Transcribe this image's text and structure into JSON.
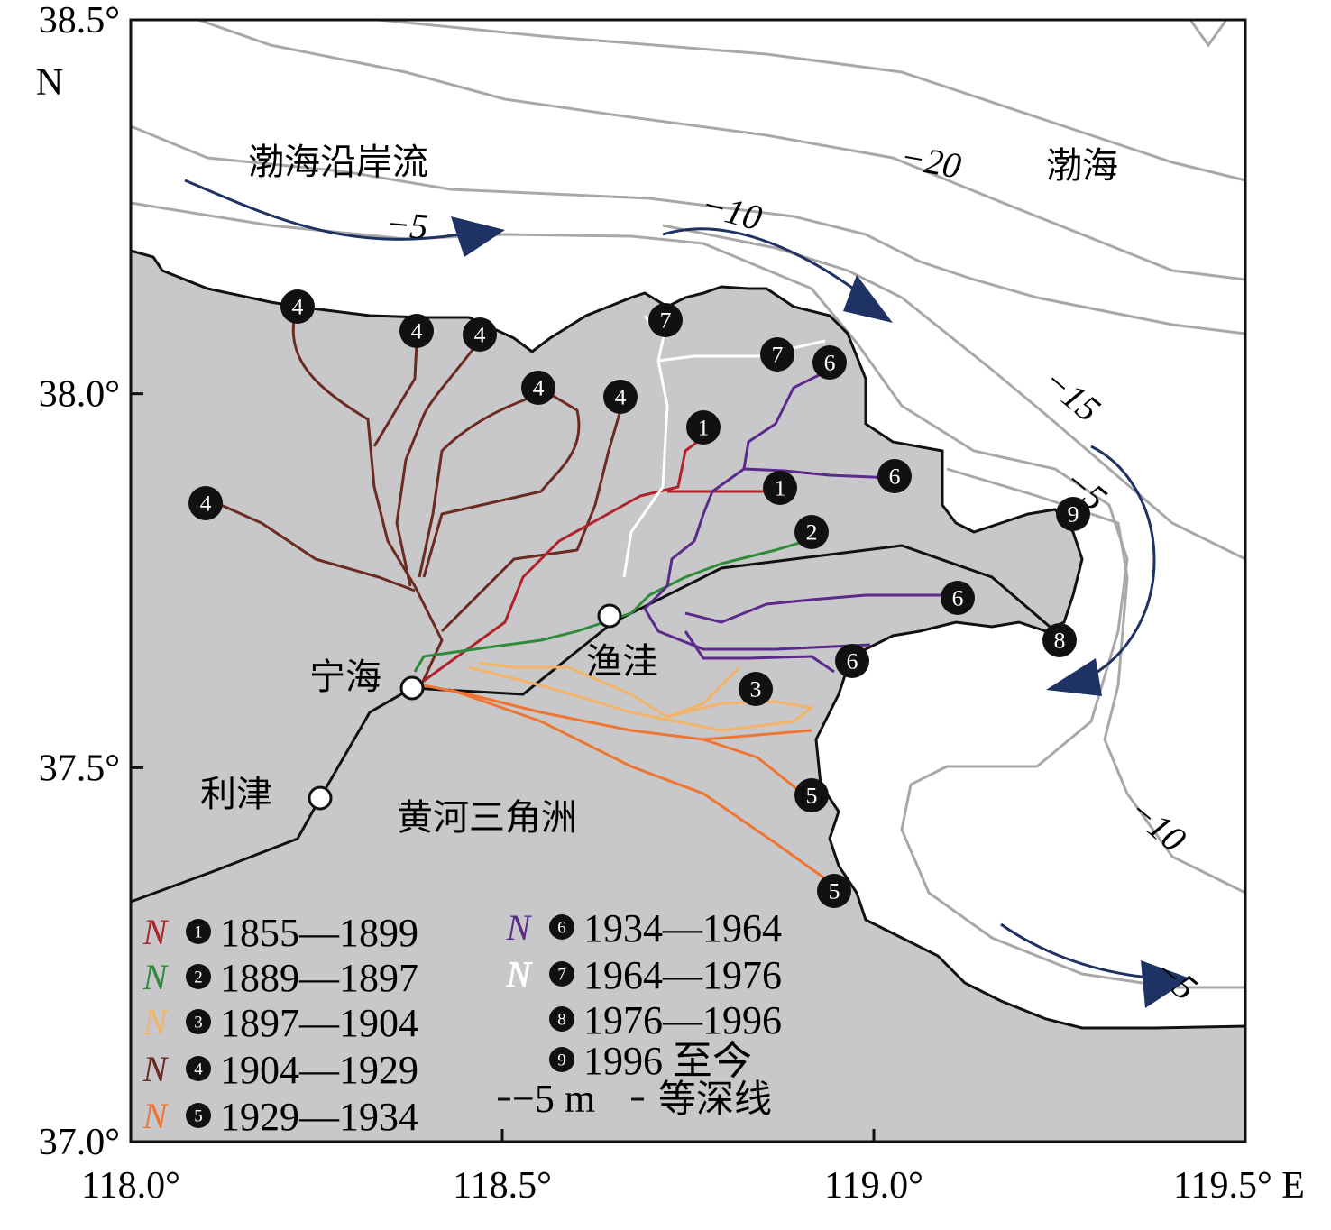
{
  "axes": {
    "xlim": [
      118,
      119.5
    ],
    "xticks": [
      {
        "value": 118,
        "label": "118.0°"
      },
      {
        "value": 118.5,
        "label": "118.5°"
      },
      {
        "value": 119,
        "label": "119.0°"
      },
      {
        "value": 119.5,
        "label": "119.5° E"
      }
    ],
    "ylim": [
      37,
      38.5
    ],
    "yticks": [
      {
        "value": 37,
        "label": "37.0°"
      },
      {
        "value": 37.5,
        "label": "37.5°"
      },
      {
        "value": 38,
        "label": "38.0°"
      },
      {
        "value": 38.5,
        "label": "38.5°"
      }
    ],
    "y_unit": "N"
  },
  "labels": {
    "current": "渤海沿岸流",
    "sea": "渤海",
    "ninghai": "宁海",
    "yuwa": "渔洼",
    "lijin": "利津",
    "delta": "黄河三角洲"
  },
  "contours": [
    "−20",
    "−10",
    "−5",
    "−15",
    "−5",
    "−10",
    "−5"
  ],
  "legend": [
    {
      "symbol": "N",
      "number": "1",
      "period": "1855—1899",
      "color": "#b0222a"
    },
    {
      "symbol": "N",
      "number": "2",
      "period": "1889—1897",
      "color": "#2e8b3a"
    },
    {
      "symbol": "N",
      "number": "3",
      "period": "1897—1904",
      "color": "#f2b468"
    },
    {
      "symbol": "N",
      "number": "4",
      "period": "1904—1929",
      "color": "#6b2a22"
    },
    {
      "symbol": "N",
      "number": "5",
      "period": "1929—1934",
      "color": "#f07432"
    },
    {
      "symbol": "N",
      "number": "6",
      "period": "1934—1964",
      "color": "#5b2a8a"
    },
    {
      "symbol": "N",
      "number": "7",
      "period": "1964—1976",
      "color": "#ffffff"
    },
    {
      "number": "8",
      "period": "1976—1996"
    },
    {
      "number": "9",
      "period": "1996 至今"
    }
  ],
  "contour_legend": {
    "sample": "−5 m",
    "text": "等深线"
  },
  "markers": [
    "4",
    "4",
    "4",
    "4",
    "4",
    "4",
    "7",
    "7",
    "6",
    "6",
    "6",
    "6",
    "1",
    "1",
    "2",
    "3",
    "5",
    "5",
    "9",
    "8"
  ]
}
